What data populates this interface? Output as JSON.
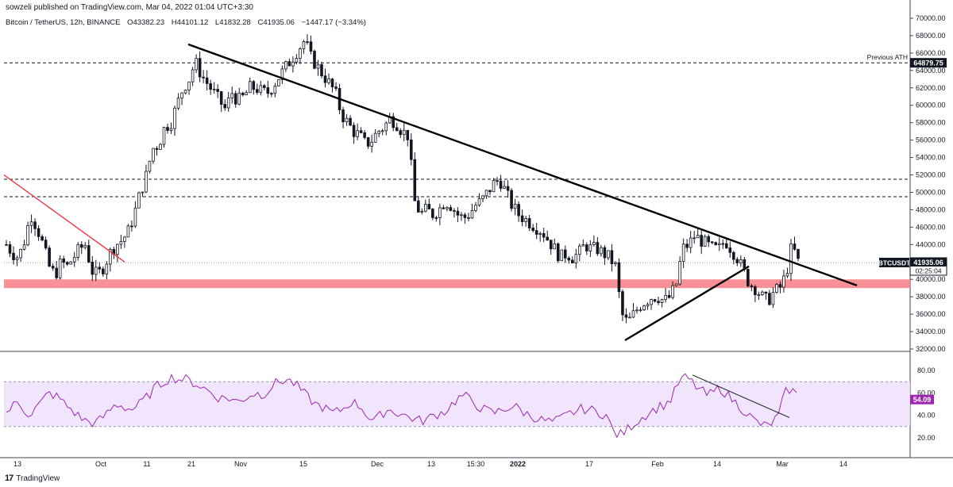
{
  "header": {
    "published_line": "sowzeli published on TradingView.com, Mar 04, 2022 01:04 UTC+3:30",
    "symbol": "Bitcoin / TetherUS, 12h, BINANCE",
    "open": "O43382.23",
    "high": "H44101.12",
    "low": "L41832.28",
    "close": "C41935.06",
    "change": "−1447.17 (−3.34%)"
  },
  "footer": {
    "logo_text": "TradingView"
  },
  "colors": {
    "candle_up": "#131722",
    "candle_down": "#131722",
    "support_zone": "#f7858a",
    "trendline": "#000000",
    "red_trendline": "#f23645",
    "rsi_line": "#9c27b0",
    "rsi_band": "#ede0fb",
    "label_bg": "#131722",
    "rsi_label_bg": "#9c27b0"
  },
  "chart_data": [
    {
      "type": "candlestick",
      "symbol": "BTCUSDT",
      "interval": "12h",
      "ylim": [
        32000,
        70000
      ],
      "y_ticks": [
        "70000.00",
        "68000.00",
        "66000.00",
        "64000.00",
        "62000.00",
        "60000.00",
        "58000.00",
        "56000.00",
        "54000.00",
        "52000.00",
        "50000.00",
        "48000.00",
        "46000.00",
        "44000.00",
        "42000.00",
        "40000.00",
        "38000.00",
        "36000.00",
        "34000.00",
        "32000.00"
      ],
      "x_ticks": [
        "13",
        "Oct",
        "11",
        "21",
        "Nov",
        "15",
        "Dec",
        "13",
        "15:30",
        "2022",
        "17",
        "Feb",
        "14",
        "Mar",
        "14"
      ],
      "close_path": [
        44000,
        43000,
        42500,
        44500,
        47500,
        46000,
        44000,
        41500,
        40500,
        42000,
        41500,
        42500,
        43500,
        44000,
        41000,
        40500,
        41500,
        43000,
        44000,
        44500,
        45500,
        47500,
        50000,
        52000,
        55000,
        55500,
        57500,
        58000,
        60000,
        62000,
        63000,
        65000,
        63500,
        62500,
        61500,
        60500,
        59500,
        61500,
        60500,
        61000,
        62000,
        62000,
        61500,
        61500,
        62500,
        63500,
        64500,
        65500,
        66500,
        67500,
        65500,
        64500,
        63500,
        62500,
        61500,
        59000,
        58000,
        57000,
        56500,
        55500,
        56000,
        57000,
        57500,
        58500,
        58000,
        57000,
        56500,
        49000,
        47500,
        48000,
        47500,
        48000,
        49000,
        48500,
        47500,
        47000,
        47500,
        48500,
        49000,
        50000,
        51000,
        51500,
        50000,
        48500,
        47500,
        47000,
        46500,
        46000,
        45500,
        44500,
        43500,
        42500,
        43000,
        42500,
        43000,
        44000,
        43500,
        43500,
        43000,
        42500,
        41500,
        36000,
        35000,
        36000,
        37000,
        37500,
        38000,
        38000,
        37500,
        38000,
        39500,
        43500,
        44000,
        45000,
        44500,
        44000,
        43500,
        43500,
        44500,
        43500,
        42500,
        41000,
        39500,
        39000,
        38000,
        37500,
        38500,
        39000,
        40500,
        44000,
        42000
      ],
      "close_label": "41935.06",
      "close_label_symbol": "BTCUSDT",
      "countdown": "02:25:04",
      "annotation": "Previous ATH",
      "horizontal_levels": [
        {
          "value": 64879.75,
          "label": "64879.75",
          "style": "dashed"
        },
        {
          "value": 51500,
          "style": "dashed"
        },
        {
          "value": 49500,
          "style": "dashed"
        },
        {
          "value": 41935.06,
          "style": "dotted"
        }
      ],
      "support_zone": [
        39000,
        40000
      ],
      "trendlines": [
        {
          "name": "descending",
          "from_date": "Oct 21",
          "to_date": "Mar 14",
          "from_value": 67000,
          "to_value": 39300
        },
        {
          "name": "ascending",
          "from_date": "Jan 24",
          "to_date": "Feb 22",
          "from_value": 33000,
          "to_value": 41500
        },
        {
          "name": "red",
          "from_date": "Sep 13",
          "to_date": "Oct 3",
          "from_value": 52000,
          "to_value": 42000
        }
      ]
    },
    {
      "type": "line",
      "name": "RSI",
      "ylim": [
        10,
        90
      ],
      "y_ticks": [
        "80.00",
        "60.00",
        "40.00",
        "20.00"
      ],
      "band": [
        30,
        70
      ],
      "current_value": "54.09",
      "values": [
        42,
        48,
        52,
        45,
        40,
        47,
        52,
        60,
        58,
        55,
        49,
        45,
        40,
        36,
        34,
        33,
        37,
        42,
        48,
        50,
        47,
        45,
        48,
        53,
        58,
        65,
        68,
        72,
        74,
        72,
        73,
        70,
        68,
        65,
        62,
        58,
        55,
        56,
        54,
        52,
        55,
        58,
        60,
        58,
        62,
        68,
        70,
        72,
        70,
        66,
        60,
        55,
        50,
        48,
        45,
        42,
        44,
        47,
        52,
        50,
        46,
        38,
        35,
        40,
        45,
        44,
        42,
        40,
        38,
        36,
        35,
        37,
        40,
        42,
        44,
        50,
        55,
        58,
        54,
        50,
        46,
        44,
        42,
        44,
        46,
        48,
        47,
        43,
        40,
        38,
        36,
        35,
        34,
        36,
        39,
        42,
        44,
        46,
        45,
        44,
        42,
        40,
        27,
        22,
        25,
        30,
        34,
        38,
        42,
        45,
        48,
        50,
        55,
        68,
        74,
        72,
        66,
        62,
        58,
        60,
        65,
        60,
        55,
        50,
        45,
        40,
        35,
        32,
        30,
        34,
        40,
        60,
        64,
        58
      ],
      "trendline": {
        "from_date": "Feb 10",
        "to_date": "Feb 28",
        "from_value": 76,
        "to_value": 38
      }
    }
  ]
}
